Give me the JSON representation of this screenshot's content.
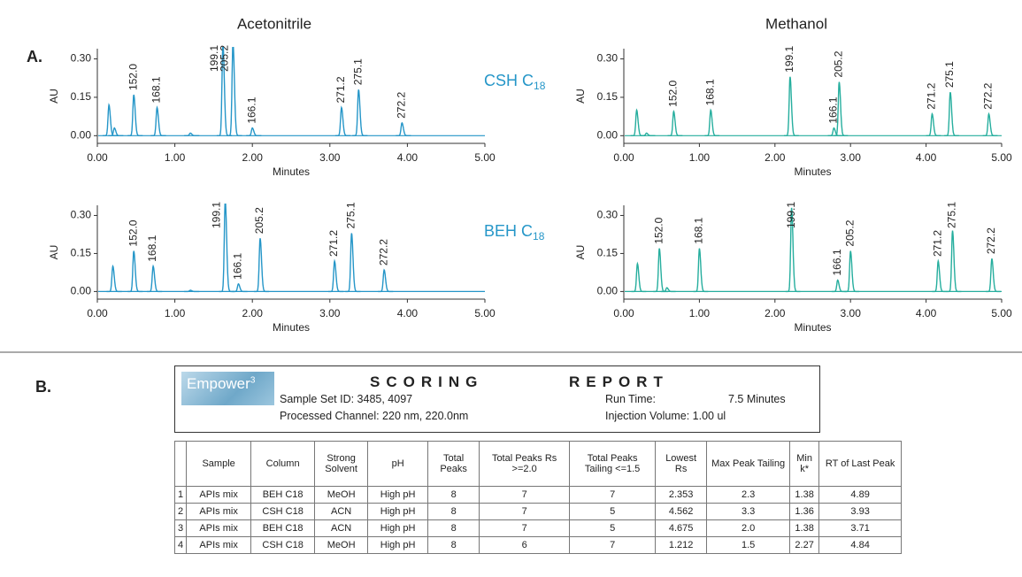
{
  "figure": {
    "panel_a": "A.",
    "panel_b": "B.",
    "solvents": [
      "Acetonitrile",
      "Methanol"
    ],
    "columns": [
      {
        "text": "CSH C",
        "sub": "18"
      },
      {
        "text": "BEH C",
        "sub": "18"
      }
    ]
  },
  "chart_data": [
    {
      "type": "chromatogram",
      "xlabel": "Minutes",
      "ylabel": "AU",
      "color": "#2596c8",
      "xlim": [
        0,
        5
      ],
      "ylim": [
        -0.03,
        0.34
      ],
      "xticks": [
        {
          "value": 0,
          "label": "0.00"
        },
        {
          "value": 1,
          "label": "1.00"
        },
        {
          "value": 2,
          "label": "2.00"
        },
        {
          "value": 3,
          "label": "3.00"
        },
        {
          "value": 4,
          "label": "4.00"
        },
        {
          "value": 5,
          "label": "5.00"
        }
      ],
      "yticks": [
        {
          "value": 0,
          "label": "0.00"
        },
        {
          "value": 0.15,
          "label": "0.15"
        },
        {
          "value": 0.3,
          "label": "0.30"
        }
      ],
      "peaks": {
        "x": [
          0.15,
          0.22,
          0.47,
          0.77,
          1.2,
          1.62,
          1.75,
          2.0,
          3.15,
          3.37,
          3.93
        ],
        "values": [
          0.12,
          0.03,
          0.16,
          0.11,
          0.01,
          0.36,
          0.36,
          0.03,
          0.11,
          0.18,
          0.05
        ],
        "labels": [
          null,
          null,
          "152.0",
          "168.1",
          null,
          "199.1",
          "205.2",
          "166.1",
          "271.2",
          "275.1",
          "272.2"
        ]
      }
    },
    {
      "type": "chromatogram",
      "xlabel": "Minutes",
      "ylabel": "AU",
      "color": "#26ae9e",
      "xlim": [
        0,
        5
      ],
      "ylim": [
        -0.03,
        0.34
      ],
      "xticks": [
        {
          "value": 0,
          "label": "0.00"
        },
        {
          "value": 1,
          "label": "1.00"
        },
        {
          "value": 2,
          "label": "2.00"
        },
        {
          "value": 3,
          "label": "3.00"
        },
        {
          "value": 4,
          "label": "4.00"
        },
        {
          "value": 5,
          "label": "5.00"
        }
      ],
      "yticks": [
        {
          "value": 0,
          "label": "0.00"
        },
        {
          "value": 0.15,
          "label": "0.15"
        },
        {
          "value": 0.3,
          "label": "0.30"
        }
      ],
      "peaks": {
        "x": [
          0.17,
          0.3,
          0.66,
          1.15,
          2.2,
          2.78,
          2.85,
          4.08,
          4.32,
          4.83
        ],
        "values": [
          0.1,
          0.01,
          0.095,
          0.1,
          0.23,
          0.03,
          0.21,
          0.085,
          0.17,
          0.085
        ],
        "labels": [
          null,
          null,
          "152.0",
          "168.1",
          "199.1",
          "166.1",
          "205.2",
          "271.2",
          "275.1",
          "272.2"
        ]
      }
    },
    {
      "type": "chromatogram",
      "xlabel": "Minutes",
      "ylabel": "AU",
      "color": "#2596c8",
      "xlim": [
        0,
        5
      ],
      "ylim": [
        -0.03,
        0.34
      ],
      "xticks": [
        {
          "value": 0,
          "label": "0.00"
        },
        {
          "value": 1,
          "label": "1.00"
        },
        {
          "value": 2,
          "label": "2.00"
        },
        {
          "value": 3,
          "label": "3.00"
        },
        {
          "value": 4,
          "label": "4.00"
        },
        {
          "value": 5,
          "label": "5.00"
        }
      ],
      "yticks": [
        {
          "value": 0,
          "label": "0.00"
        },
        {
          "value": 0.15,
          "label": "0.15"
        },
        {
          "value": 0.3,
          "label": "0.30"
        }
      ],
      "peaks": {
        "x": [
          0.2,
          0.47,
          0.72,
          1.2,
          1.65,
          1.82,
          2.1,
          3.06,
          3.28,
          3.7
        ],
        "values": [
          0.1,
          0.16,
          0.1,
          0.005,
          0.36,
          0.03,
          0.21,
          0.12,
          0.23,
          0.085
        ],
        "labels": [
          null,
          "152.0",
          "168.1",
          null,
          "199.1",
          "166.1",
          "205.2",
          "271.2",
          "275.1",
          "272.2"
        ]
      }
    },
    {
      "type": "chromatogram",
      "xlabel": "Minutes",
      "ylabel": "AU",
      "color": "#26ae9e",
      "xlim": [
        0,
        5
      ],
      "ylim": [
        -0.03,
        0.34
      ],
      "xticks": [
        {
          "value": 0,
          "label": "0.00"
        },
        {
          "value": 1,
          "label": "1.00"
        },
        {
          "value": 2,
          "label": "2.00"
        },
        {
          "value": 3,
          "label": "3.00"
        },
        {
          "value": 4,
          "label": "4.00"
        },
        {
          "value": 5,
          "label": "5.00"
        }
      ],
      "yticks": [
        {
          "value": 0,
          "label": "0.00"
        },
        {
          "value": 0.15,
          "label": "0.15"
        },
        {
          "value": 0.3,
          "label": "0.30"
        }
      ],
      "peaks": {
        "x": [
          0.18,
          0.47,
          0.57,
          1.0,
          2.22,
          2.83,
          3.0,
          4.16,
          4.35,
          4.87
        ],
        "values": [
          0.11,
          0.17,
          0.015,
          0.17,
          0.33,
          0.045,
          0.16,
          0.12,
          0.24,
          0.13
        ],
        "labels": [
          null,
          "152.0",
          null,
          "168.1",
          "199.1",
          "166.1",
          "205.2",
          "271.2",
          "275.1",
          "272.2"
        ]
      }
    }
  ],
  "report": {
    "logo": "Empower",
    "logo_sup": "3",
    "title": "SCORING",
    "title2": "REPORT",
    "sample_set": "Sample Set ID:  3485, 4097",
    "channel": "Processed Channel:  220 nm, 220.0nm",
    "run_time_label": "Run Time:",
    "run_time": "7.5 Minutes",
    "injection": "Injection Volume: 1.00 ul",
    "table": {
      "header": [
        "",
        "Sample",
        "Column",
        "Strong Solvent",
        "pH",
        "Total Peaks",
        "Total Peaks Rs >=2.0",
        "Total Peaks Tailing <=1.5",
        "Lowest Rs",
        "Max Peak Tailing",
        "Min k*",
        "RT of Last Peak"
      ],
      "rows": [
        [
          "1",
          "APIs mix",
          "BEH C18",
          "MeOH",
          "High pH",
          "8",
          "7",
          "7",
          "2.353",
          "2.3",
          "1.38",
          "4.89"
        ],
        [
          "2",
          "APIs mix",
          "CSH C18",
          "ACN",
          "High pH",
          "8",
          "7",
          "5",
          "4.562",
          "3.3",
          "1.36",
          "3.93"
        ],
        [
          "3",
          "APIs mix",
          "BEH C18",
          "ACN",
          "High pH",
          "8",
          "7",
          "5",
          "4.675",
          "2.0",
          "1.38",
          "3.71"
        ],
        [
          "4",
          "APIs mix",
          "CSH C18",
          "MeOH",
          "High pH",
          "8",
          "6",
          "7",
          "1.212",
          "1.5",
          "2.27",
          "4.84"
        ]
      ]
    }
  }
}
